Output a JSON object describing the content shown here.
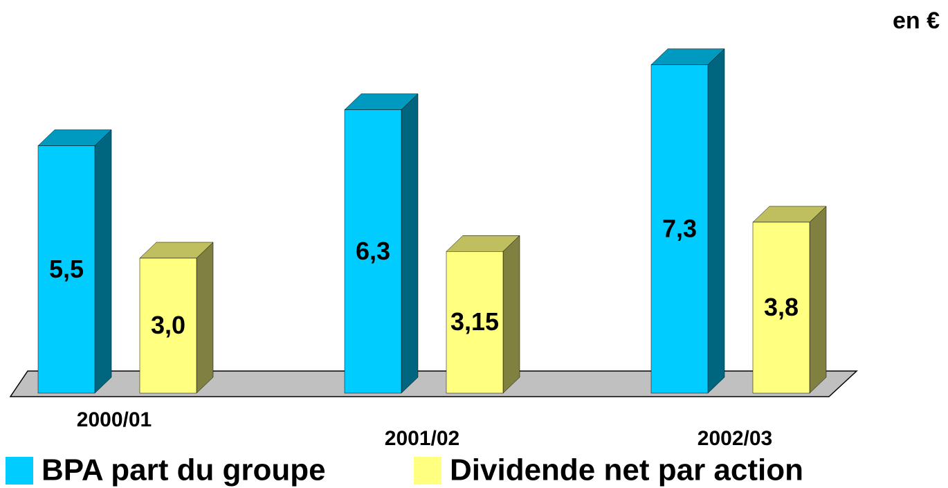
{
  "chart_data": {
    "type": "bar3d",
    "annotation": "en €",
    "categories": [
      "2000/01",
      "2001/02",
      "2002/03"
    ],
    "series": [
      {
        "name": "BPA part du groupe",
        "color": "#00ccff",
        "values": [
          5.5,
          6.3,
          7.3
        ],
        "value_labels": [
          "5,5",
          "6,3",
          "7,3"
        ]
      },
      {
        "name": "Dividende net par action",
        "color": "#ffff80",
        "values": [
          3.0,
          3.15,
          3.8
        ],
        "value_labels": [
          "3,0",
          "3,15",
          "3,8"
        ]
      }
    ]
  }
}
